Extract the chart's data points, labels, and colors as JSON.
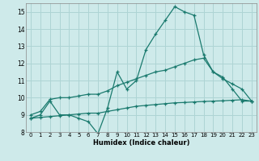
{
  "xlabel": "Humidex (Indice chaleur)",
  "xlim": [
    -0.5,
    23.5
  ],
  "ylim": [
    8,
    15.5
  ],
  "xticks": [
    0,
    1,
    2,
    3,
    4,
    5,
    6,
    7,
    8,
    9,
    10,
    11,
    12,
    13,
    14,
    15,
    16,
    17,
    18,
    19,
    20,
    21,
    22,
    23
  ],
  "yticks": [
    8,
    9,
    10,
    11,
    12,
    13,
    14,
    15
  ],
  "background_color": "#ceeaea",
  "grid_color": "#aed4d4",
  "line_color": "#1a7a6e",
  "line1_x": [
    0,
    1,
    2,
    3,
    4,
    5,
    6,
    7,
    8,
    9,
    10,
    11,
    12,
    13,
    14,
    15,
    16,
    17,
    18,
    19,
    20,
    21,
    22,
    23
  ],
  "line1_y": [
    8.8,
    9.0,
    9.8,
    9.0,
    9.0,
    8.8,
    8.6,
    7.9,
    9.4,
    11.5,
    10.5,
    11.0,
    12.8,
    13.7,
    14.5,
    15.3,
    15.0,
    14.8,
    12.5,
    11.5,
    11.2,
    10.5,
    9.8,
    9.8
  ],
  "line2_x": [
    0,
    1,
    2,
    3,
    4,
    5,
    6,
    7,
    8,
    9,
    10,
    11,
    12,
    13,
    14,
    15,
    16,
    17,
    18,
    19,
    20,
    21,
    22,
    23
  ],
  "line2_y": [
    9.0,
    9.2,
    9.9,
    10.0,
    10.0,
    10.1,
    10.2,
    10.2,
    10.4,
    10.7,
    10.9,
    11.1,
    11.3,
    11.5,
    11.6,
    11.8,
    12.0,
    12.2,
    12.3,
    11.5,
    11.1,
    10.8,
    10.5,
    9.8
  ],
  "line3_x": [
    0,
    1,
    2,
    3,
    4,
    5,
    6,
    7,
    8,
    9,
    10,
    11,
    12,
    13,
    14,
    15,
    16,
    17,
    18,
    19,
    20,
    21,
    22,
    23
  ],
  "line3_y": [
    8.8,
    8.85,
    8.9,
    8.95,
    9.0,
    9.05,
    9.1,
    9.1,
    9.2,
    9.3,
    9.4,
    9.5,
    9.55,
    9.6,
    9.65,
    9.7,
    9.72,
    9.75,
    9.78,
    9.8,
    9.82,
    9.85,
    9.88,
    9.8
  ]
}
